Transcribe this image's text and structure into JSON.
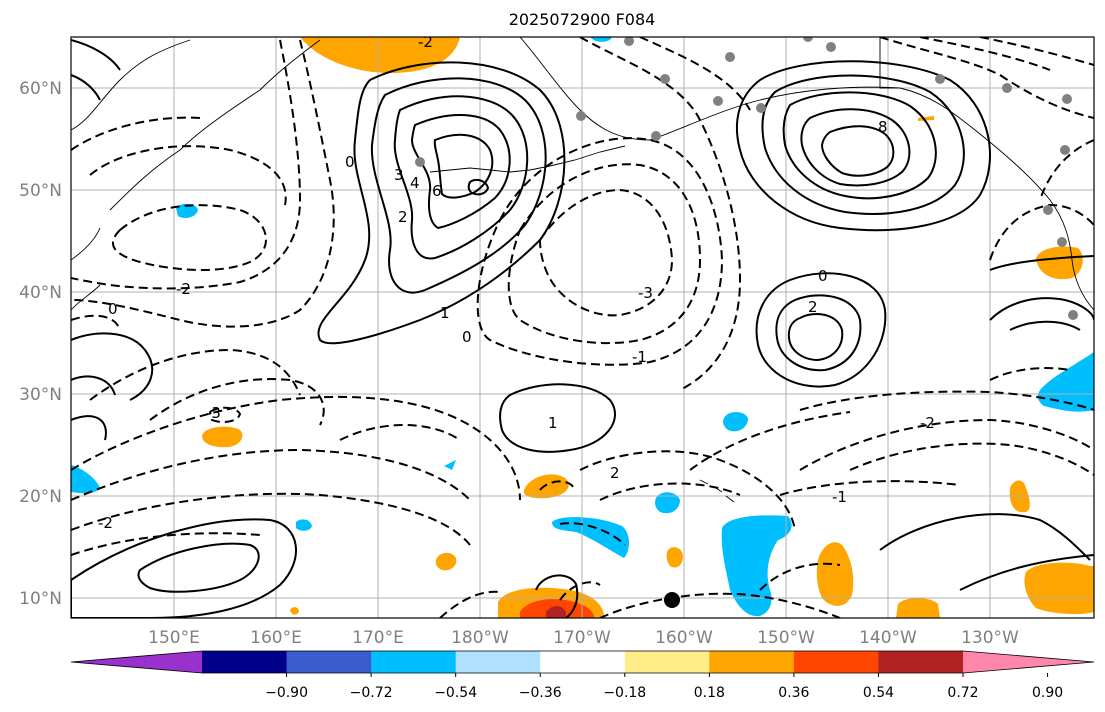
{
  "title": "2025072900 F084",
  "map": {
    "lon_ticks": [
      "150°E",
      "160°E",
      "170°E",
      "180°W",
      "170°W",
      "160°W",
      "150°W",
      "140°W",
      "130°W"
    ],
    "lat_ticks": [
      "60°N",
      "50°N",
      "40°N",
      "30°N",
      "20°N",
      "10°N"
    ],
    "contour_labels": [
      "-2",
      "0",
      "2",
      "3",
      "4",
      "6",
      "-1",
      "1",
      "-3",
      "0",
      "8",
      "-2",
      "-1",
      "0",
      "2",
      "-2",
      "-3",
      "0",
      "-2",
      "1",
      "2"
    ]
  },
  "colorbar": {
    "tick_labels": [
      "−0.90",
      "−0.72",
      "−0.54",
      "−0.36",
      "−0.18",
      "0.18",
      "0.36",
      "0.54",
      "0.72",
      "0.90"
    ],
    "colors": [
      "#9932cc",
      "#00008b",
      "#3a5bcc",
      "#00bfff",
      "#b0e2ff",
      "#ffffff",
      "#ffee88",
      "#ffa500",
      "#ff4500",
      "#b22222",
      "#ff88aa"
    ]
  },
  "colors": {
    "orange": "#ffa500",
    "red": "#ff4500",
    "darkred": "#b22222",
    "lightblue": "#00bfff",
    "grid": "#b0b0b0",
    "station": "#808080"
  }
}
